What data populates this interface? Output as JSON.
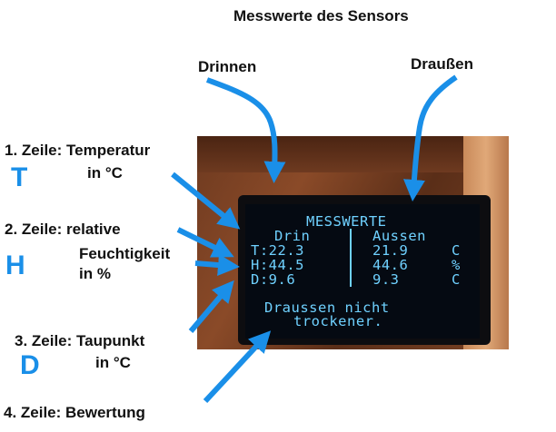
{
  "title": "Messwerte des Sensors",
  "labels": {
    "drinnen": "Drinnen",
    "draussen": "Draußen",
    "row1_a": "1. Zeile: Temperatur",
    "row1_b": "in °C",
    "row1_letter": "T",
    "row2_a": "2. Zeile: relative",
    "row2_b": "Feuchtigkeit",
    "row2_c": "in %",
    "row2_letter": "H",
    "row3_a": "3. Zeile: Taupunkt",
    "row3_b": "in °C",
    "row3_letter": "D",
    "row4": "4. Zeile: Bewertung"
  },
  "display": {
    "heading": "MESSWERTE",
    "col_in": "Drin",
    "col_out": "Aussen",
    "t_in": "T:22.3",
    "h_in": "H:44.5",
    "d_in": "D:9.6",
    "t_out": "21.9",
    "h_out": "44.6",
    "d_out": "9.3",
    "u_t": "C",
    "u_h": "%",
    "u_d": "C",
    "message_1": "Draussen nicht",
    "message_2": "trockener."
  },
  "colors": {
    "arrow": "#1a8fe8",
    "oled_text": "#6fd1ff",
    "letters": "#1a8fe8"
  }
}
